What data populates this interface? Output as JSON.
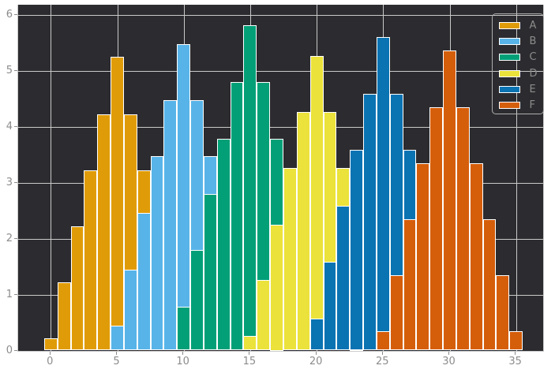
{
  "chart_data": {
    "type": "bar",
    "subtype": "overlapping-histograms",
    "title": "",
    "xlabel": "",
    "ylabel": "",
    "xlim": [
      -2.4,
      37.2
    ],
    "ylim": [
      0,
      6.05
    ],
    "x_ticks": [
      0,
      5,
      10,
      15,
      20,
      25,
      30,
      35
    ],
    "y_ticks": [
      0,
      1,
      2,
      3,
      4,
      5,
      6
    ],
    "bin_width": 1,
    "grid": true,
    "legend_position": "upper right",
    "legend_labels": [
      "A",
      "B",
      "C",
      "D",
      "E",
      "F"
    ],
    "series": [
      {
        "name": "A",
        "color": "#e09c08",
        "first_bin_center": 0,
        "values": [
          0.22,
          1.22,
          2.22,
          3.22,
          4.22,
          5.24,
          4.22,
          3.22,
          2.22,
          1.22,
          0.22
        ]
      },
      {
        "name": "B",
        "color": "#58b4e8",
        "first_bin_center": 5,
        "values": [
          0.45,
          1.45,
          2.46,
          3.47,
          4.47,
          5.47,
          4.47,
          3.47,
          2.46,
          1.45,
          0.45
        ]
      },
      {
        "name": "C",
        "color": "#03a078",
        "first_bin_center": 10,
        "values": [
          0.78,
          1.79,
          2.8,
          3.78,
          4.8,
          5.81,
          4.8,
          3.78,
          2.8,
          1.79,
          0.78
        ]
      },
      {
        "name": "D",
        "color": "#ebe23b",
        "first_bin_center": 15,
        "values": [
          0.26,
          1.26,
          2.25,
          3.26,
          4.26,
          5.26,
          4.26,
          3.26,
          2.25,
          1.26,
          0.26
        ]
      },
      {
        "name": "E",
        "color": "#0a73b2",
        "first_bin_center": 20,
        "values": [
          0.57,
          1.58,
          2.58,
          3.58,
          4.59,
          5.6,
          4.59,
          3.58,
          2.58,
          1.58,
          0.57
        ]
      },
      {
        "name": "F",
        "color": "#d55e0b",
        "first_bin_center": 25,
        "values": [
          0.35,
          1.35,
          2.34,
          3.35,
          4.35,
          5.36,
          4.35,
          3.35,
          2.34,
          1.35,
          0.35
        ]
      }
    ],
    "colors": {
      "figure_background": "#ffffff",
      "axes_background": "#2c2c30",
      "gridline": "#c9c9c9",
      "spine": "#cbcbcb",
      "tick_label": "#8c8c8c",
      "bar_edge": "#ffffff",
      "legend_border": "#aeaeae"
    }
  }
}
